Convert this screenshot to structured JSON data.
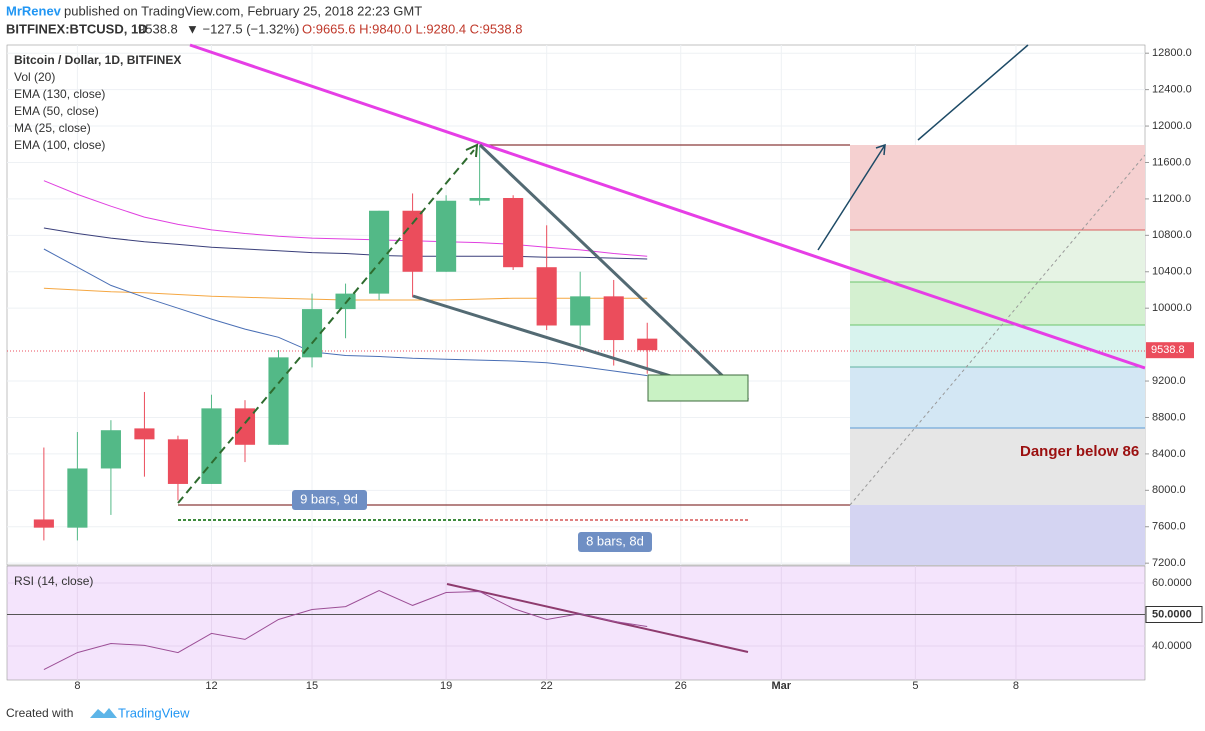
{
  "header": {
    "author": "MrRenev",
    "published": "published on TradingView.com, February 25, 2018 22:23 GMT",
    "symbol": "BITFINEX:BTCUSD, 1D",
    "last": "9538.8",
    "change": "▼ −127.5 (−1.32%)",
    "ohlc": "O:9665.6 H:9840.0 L:9280.4 C:9538.8"
  },
  "footer": {
    "created": "Created with",
    "brand": "TradingView"
  },
  "chart_data": {
    "type": "candlestick",
    "title": "Bitcoin / Dollar, 1D, BITFINEX",
    "volume_legend": "Vol (20)",
    "x": [
      7,
      8,
      9,
      10,
      11,
      12,
      13,
      14,
      15,
      16,
      17,
      18,
      19,
      20,
      21,
      22,
      23,
      24,
      25
    ],
    "open": [
      7680,
      7590,
      8240,
      8680,
      8560,
      8070,
      8900,
      8500,
      9460,
      9990,
      10160,
      11070,
      10400,
      11180,
      11210,
      10450,
      9810,
      10130,
      9665.6
    ],
    "high": [
      8470,
      8640,
      8770,
      9080,
      8600,
      9050,
      8990,
      9540,
      10160,
      10270,
      11070,
      11260,
      11240,
      11790,
      11240,
      10910,
      10400,
      10310,
      9840
    ],
    "low": [
      7450,
      7450,
      7730,
      8150,
      7890,
      8070,
      8310,
      8500,
      9350,
      9670,
      10090,
      10120,
      10400,
      11130,
      10420,
      9760,
      9590,
      9370,
      9280.4
    ],
    "close": [
      7590,
      8240,
      8660,
      8560,
      8070,
      8900,
      8500,
      9460,
      9990,
      10160,
      11070,
      10400,
      11180,
      11210,
      10450,
      9810,
      10130,
      9650,
      9538.8
    ],
    "up_color": "#53b987",
    "down_color": "#eb4d5c",
    "series": [
      {
        "name": "EMA (130, close)",
        "color": "#f5a742",
        "values": [
          10220,
          10200,
          10180,
          10170,
          10150,
          10130,
          10120,
          10110,
          10100,
          10090,
          10090,
          10090,
          10090,
          10100,
          10110,
          10110,
          10110,
          10110,
          10110
        ]
      },
      {
        "name": "EMA (50, close)",
        "color": "#e040e0",
        "values": [
          11400,
          11250,
          11120,
          11000,
          10920,
          10860,
          10820,
          10790,
          10770,
          10760,
          10750,
          10740,
          10730,
          10720,
          10700,
          10670,
          10640,
          10600,
          10570
        ]
      },
      {
        "name": "MA (25, close)",
        "color": "#4a6fb5",
        "values": [
          10650,
          10450,
          10250,
          10120,
          10000,
          9880,
          9770,
          9680,
          9520,
          9480,
          9470,
          9450,
          9440,
          9430,
          9420,
          9400,
          9360,
          9310,
          9260
        ]
      },
      {
        "name": "EMA (100, close)",
        "color": "#3a3f7a",
        "values": [
          10880,
          10820,
          10770,
          10730,
          10700,
          10670,
          10650,
          10630,
          10610,
          10600,
          10580,
          10570,
          10570,
          10570,
          10570,
          10560,
          10560,
          10550,
          10540
        ]
      }
    ],
    "xlim": [
      5.9,
      39.85
    ],
    "xticks": [
      8,
      12,
      15,
      19,
      22,
      26,
      {
        "value": 29,
        "label": "Mar"
      },
      {
        "value": 33,
        "label": "5"
      },
      {
        "value": 36,
        "label": "8"
      }
    ],
    "ylim": [
      7180,
      12890
    ],
    "yticks": [
      {
        "value": 7200,
        "label": "7200.0"
      },
      {
        "value": 7600,
        "label": "7600.0"
      },
      {
        "value": 8000,
        "label": "8000.0"
      },
      {
        "value": 8400,
        "label": "8400.0"
      },
      {
        "value": 8800,
        "label": "8800.0"
      },
      {
        "value": 9200,
        "label": "9200.0"
      },
      {
        "value": 10000,
        "label": "10000.0"
      },
      {
        "value": 10400,
        "label": "10400.0"
      },
      {
        "value": 10800,
        "label": "10800.0"
      },
      {
        "value": 11200,
        "label": "11200.0"
      },
      {
        "value": 11600,
        "label": "11600.0"
      },
      {
        "value": 12000,
        "label": "12000.0"
      },
      {
        "value": 12400,
        "label": "12400.0"
      },
      {
        "value": 12800,
        "label": "12800.0"
      }
    ],
    "grid": true,
    "annotations": [
      "9 bars, 9d",
      "8 bars, 8d",
      "Danger below 86"
    ],
    "rsi": {
      "title": "RSI (14, close)",
      "color": "#9c4f96",
      "values": [
        32.5,
        37.9,
        40.8,
        40.2,
        37.9,
        44.0,
        42.1,
        48.4,
        51.6,
        52.5,
        57.6,
        52.9,
        57.0,
        57.3,
        51.9,
        48.4,
        50.3,
        47.8,
        46.2
      ],
      "ylim": [
        29.2,
        65.4
      ],
      "yticks": [
        {
          "value": 40,
          "label": "40.0000"
        },
        {
          "value": 50,
          "label": "50.0000"
        },
        {
          "value": 60,
          "label": "60.0000"
        }
      ]
    }
  }
}
